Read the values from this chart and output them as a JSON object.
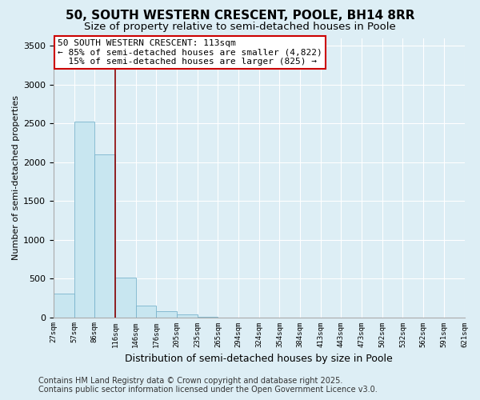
{
  "title": "50, SOUTH WESTERN CRESCENT, POOLE, BH14 8RR",
  "subtitle": "Size of property relative to semi-detached houses in Poole",
  "xlabel": "Distribution of semi-detached houses by size in Poole",
  "ylabel": "Number of semi-detached properties",
  "bar_values": [
    300,
    2520,
    2100,
    510,
    150,
    80,
    40,
    10,
    0,
    0,
    0,
    0,
    0,
    0,
    0,
    0,
    0,
    0,
    0,
    0
  ],
  "bin_labels": [
    "27sqm",
    "57sqm",
    "86sqm",
    "116sqm",
    "146sqm",
    "176sqm",
    "205sqm",
    "235sqm",
    "265sqm",
    "294sqm",
    "324sqm",
    "354sqm",
    "384sqm",
    "413sqm",
    "443sqm",
    "473sqm",
    "502sqm",
    "532sqm",
    "562sqm",
    "591sqm",
    "621sqm"
  ],
  "bar_color": "#c8e6f0",
  "bar_edge_color": "#7ab4cc",
  "property_line_x": 3,
  "property_line_color": "#8b0000",
  "annotation_line1": "50 SOUTH WESTERN CRESCENT: 113sqm",
  "annotation_line2": "← 85% of semi-detached houses are smaller (4,822)",
  "annotation_line3": "  15% of semi-detached houses are larger (825) →",
  "annotation_box_color": "#ffffff",
  "annotation_box_edge_color": "#cc0000",
  "ylim": [
    0,
    3600
  ],
  "yticks": [
    0,
    500,
    1000,
    1500,
    2000,
    2500,
    3000,
    3500
  ],
  "footer_line1": "Contains HM Land Registry data © Crown copyright and database right 2025.",
  "footer_line2": "Contains public sector information licensed under the Open Government Licence v3.0.",
  "background_color": "#ddeef5",
  "grid_color": "#ffffff",
  "title_fontsize": 11,
  "subtitle_fontsize": 9.5,
  "annotation_fontsize": 8,
  "footer_fontsize": 7
}
